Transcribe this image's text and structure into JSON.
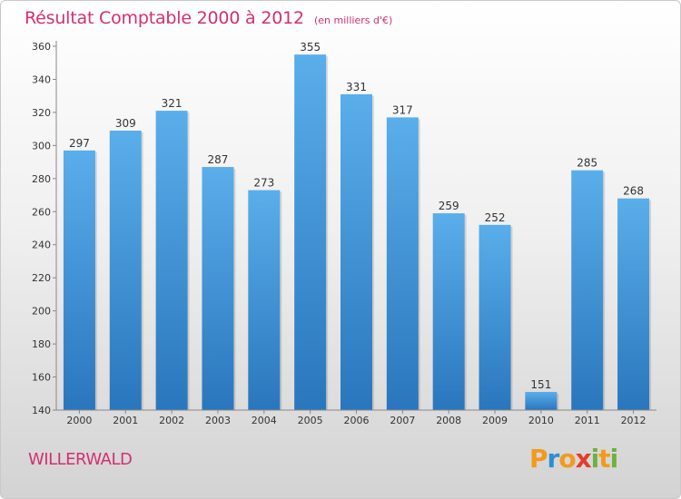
{
  "chart_data": {
    "type": "bar",
    "title": "Résultat Comptable 2000 à 2012",
    "unit_label": "(en milliers d'€)",
    "categories": [
      "2000",
      "2001",
      "2002",
      "2003",
      "2004",
      "2005",
      "2006",
      "2007",
      "2008",
      "2009",
      "2010",
      "2011",
      "2012"
    ],
    "values": [
      297,
      309,
      321,
      287,
      273,
      355,
      331,
      317,
      259,
      252,
      151,
      285,
      268
    ],
    "ylim": [
      140,
      360
    ],
    "yticks": [
      140,
      160,
      180,
      200,
      220,
      240,
      260,
      280,
      300,
      320,
      340,
      360
    ],
    "xlabel": "",
    "ylabel": "",
    "grid": false,
    "bar_color": "#3d8fd6",
    "bar_color_light": "#5aaeea",
    "bar_color_dark": "#2a76bd"
  },
  "commune": "WILLERWALD",
  "logo": {
    "letters": [
      "P",
      "r",
      "o",
      "x",
      "i",
      "t",
      "i"
    ],
    "colors": [
      "#f39a1e",
      "#2b8fd6",
      "#f39a1e",
      "#e63b2e",
      "#6cb33f",
      "#f39a1e",
      "#6cb33f"
    ]
  }
}
